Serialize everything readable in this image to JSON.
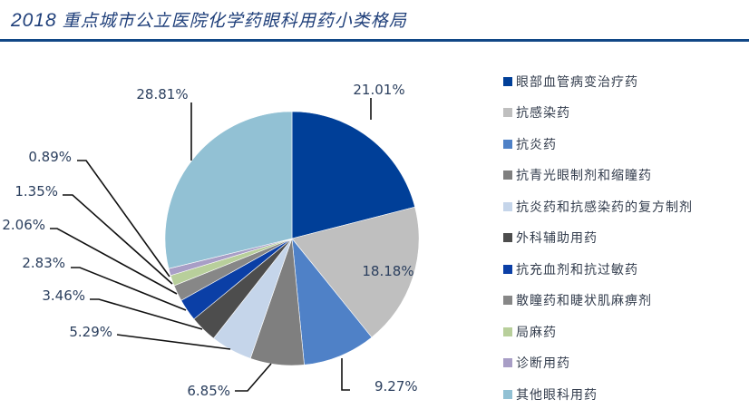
{
  "header": {
    "year": "2018",
    "title": "重点城市公立医院化学药眼科用药小类格局"
  },
  "chart_data": {
    "type": "pie",
    "title": "2018 重点城市公立医院化学药眼科用药小类格局",
    "start_angle_deg": 0,
    "direction": "clockwise",
    "legend_position": "right",
    "categories": [
      "眼部血管病变治疗药",
      "抗感染药",
      "抗炎药",
      "抗青光眼制剂和缩瞳药",
      "抗炎药和抗感染药的复方制剂",
      "外科辅助用药",
      "抗充血剂和抗过敏药",
      "散瞳药和睫状肌麻痹剂",
      "局麻药",
      "诊断用药",
      "其他眼科用药"
    ],
    "values": [
      21.01,
      18.18,
      9.27,
      6.85,
      5.29,
      3.46,
      2.83,
      2.06,
      1.35,
      0.89,
      28.81
    ],
    "labels": [
      "21.01%",
      "18.18%",
      "9.27%",
      "6.85%",
      "5.29%",
      "3.46%",
      "2.83%",
      "2.06%",
      "1.35%",
      "0.89%",
      "28.81%"
    ],
    "colors": [
      "#003f98",
      "#bfbfbf",
      "#4f81c7",
      "#7f7f7f",
      "#c5d5ea",
      "#4d4d4d",
      "#0b3fa6",
      "#878787",
      "#b8cf9b",
      "#a89ec6",
      "#92c1d4"
    ]
  },
  "colors": {
    "title": "#1f3f7a",
    "rule": "#114786",
    "label_text": "#2b3f5e"
  }
}
